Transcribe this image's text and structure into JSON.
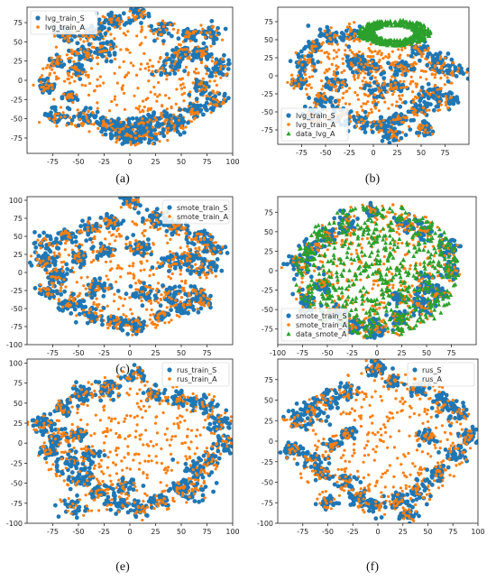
{
  "colors": {
    "S": "#1f77b4",
    "A": "#ff7f0e",
    "data": "#2ca02c"
  },
  "panel_captions": [
    "(a)",
    "(b)",
    "(c)",
    "(d)",
    "(e)",
    "(f)"
  ],
  "chart_data": [
    {
      "type": "scatter",
      "caption": "(a)",
      "legend_loc": "top-left",
      "xlim": [
        -100,
        100
      ],
      "ylim": [
        -95,
        95
      ],
      "xticks": [
        -75,
        -50,
        -25,
        0,
        25,
        50,
        75,
        100
      ],
      "yticks": [
        -75,
        -50,
        -25,
        0,
        25,
        50,
        75
      ],
      "grid": false,
      "series": [
        {
          "name": "lvg_train_S",
          "marker": "circle",
          "color": "#1f77b4"
        },
        {
          "name": "lvg_train_A",
          "marker": "x",
          "color": "#ff7f0e"
        }
      ],
      "clusters_S": [
        [
          -62,
          58
        ],
        [
          -38,
          62
        ],
        [
          -18,
          78
        ],
        [
          8,
          85
        ],
        [
          32,
          66
        ],
        [
          58,
          58
        ],
        [
          78,
          62
        ],
        [
          88,
          18
        ],
        [
          -72,
          22
        ],
        [
          -58,
          -22
        ],
        [
          -80,
          -8
        ],
        [
          -42,
          -48
        ],
        [
          -22,
          -58
        ],
        [
          -8,
          -62
        ],
        [
          12,
          -58
        ],
        [
          22,
          -72
        ],
        [
          45,
          -58
        ],
        [
          62,
          -40
        ],
        [
          82,
          -28
        ],
        [
          72,
          -10
        ],
        [
          70,
          35
        ],
        [
          48,
          35
        ],
        [
          -45,
          35
        ],
        [
          -25,
          40
        ],
        [
          -8,
          -72
        ],
        [
          5,
          -75
        ],
        [
          28,
          -50
        ],
        [
          -72,
          -45
        ],
        [
          -52,
          12
        ],
        [
          35,
          15
        ]
      ],
      "spread_A": [
        [
          -92,
          92
        ],
        [
          -82,
          80
        ]
      ]
    },
    {
      "type": "scatter",
      "caption": "(b)",
      "legend_loc": "bottom-left",
      "xlim": [
        -100,
        100
      ],
      "ylim": [
        -95,
        95
      ],
      "xticks": [
        -75,
        -50,
        -25,
        0,
        25,
        50,
        75
      ],
      "yticks": [
        -75,
        -50,
        -25,
        0,
        25,
        50,
        75
      ],
      "grid": false,
      "series": [
        {
          "name": "lvg_train_S",
          "marker": "circle",
          "color": "#1f77b4"
        },
        {
          "name": "lvg_train_A",
          "marker": "x",
          "color": "#ff7f0e"
        },
        {
          "name": "data_lvg_A",
          "marker": "triangle",
          "color": "#2ca02c"
        }
      ],
      "clusters_S": [
        [
          -62,
          42
        ],
        [
          -45,
          55
        ],
        [
          -22,
          58
        ],
        [
          -72,
          18
        ],
        [
          -78,
          -10
        ],
        [
          -55,
          -35
        ],
        [
          -35,
          -55
        ],
        [
          -12,
          -65
        ],
        [
          10,
          -68
        ],
        [
          28,
          -60
        ],
        [
          48,
          -48
        ],
        [
          62,
          -25
        ],
        [
          75,
          -35
        ],
        [
          82,
          8
        ],
        [
          68,
          20
        ],
        [
          48,
          38
        ],
        [
          -40,
          -10
        ],
        [
          -20,
          20
        ],
        [
          5,
          -20
        ],
        [
          25,
          -15
        ],
        [
          30,
          10
        ],
        [
          -5,
          10
        ],
        [
          -62,
          -55
        ],
        [
          55,
          -75
        ],
        [
          18,
          -82
        ]
      ],
      "ring_data": {
        "center": [
          22,
          60
        ],
        "rx": 38,
        "ry": 18
      },
      "spread_A": [
        [
          -85,
          90
        ],
        [
          -85,
          55
        ]
      ]
    },
    {
      "type": "scatter",
      "caption": "(c)",
      "legend_loc": "top-right",
      "xlim": [
        -100,
        100
      ],
      "ylim": [
        -100,
        105
      ],
      "xticks": [
        -75,
        -50,
        -25,
        0,
        25,
        50,
        75
      ],
      "yticks": [
        -100,
        -75,
        -50,
        -25,
        0,
        25,
        50,
        75,
        100
      ],
      "grid": false,
      "series": [
        {
          "name": "smote_train_S",
          "marker": "circle",
          "color": "#1f77b4"
        },
        {
          "name": "smote_train_A",
          "marker": "x",
          "color": "#ff7f0e"
        }
      ],
      "clusters_S": [
        [
          -80,
          42
        ],
        [
          -62,
          52
        ],
        [
          -40,
          60
        ],
        [
          -18,
          70
        ],
        [
          0,
          98
        ],
        [
          25,
          75
        ],
        [
          45,
          62
        ],
        [
          68,
          48
        ],
        [
          82,
          35
        ],
        [
          -82,
          18
        ],
        [
          -70,
          -5
        ],
        [
          -80,
          -25
        ],
        [
          -58,
          -42
        ],
        [
          -38,
          -58
        ],
        [
          -15,
          -68
        ],
        [
          5,
          -75
        ],
        [
          30,
          -60
        ],
        [
          52,
          -48
        ],
        [
          65,
          -30
        ],
        [
          72,
          5
        ],
        [
          58,
          20
        ],
        [
          40,
          15
        ],
        [
          -50,
          20
        ],
        [
          -25,
          30
        ],
        [
          10,
          35
        ],
        [
          -30,
          -20
        ],
        [
          15,
          -30
        ],
        [
          40,
          -30
        ],
        [
          72,
          -40
        ]
      ],
      "spread_A": [
        [
          -90,
          90
        ],
        [
          -95,
          85
        ]
      ]
    },
    {
      "type": "scatter",
      "caption": "(d)",
      "legend_loc": "bottom-left",
      "xlim": [
        -100,
        100
      ],
      "ylim": [
        -95,
        95
      ],
      "xticks": [
        -100,
        -75,
        -50,
        -25,
        0,
        25,
        50,
        75
      ],
      "yticks": [
        -75,
        -50,
        -25,
        0,
        25,
        50,
        75
      ],
      "grid": false,
      "series": [
        {
          "name": "smote_train_S",
          "marker": "circle",
          "color": "#1f77b4"
        },
        {
          "name": "smote_train_A",
          "marker": "x",
          "color": "#ff7f0e"
        },
        {
          "name": "data_smote_A",
          "marker": "triangle",
          "color": "#2ca02c"
        }
      ],
      "clusters_S": [
        [
          -82,
          10
        ],
        [
          -65,
          30
        ],
        [
          -55,
          -20
        ],
        [
          -70,
          -40
        ],
        [
          -40,
          -55
        ],
        [
          -22,
          -70
        ],
        [
          0,
          -75
        ],
        [
          22,
          -62
        ],
        [
          45,
          -45
        ],
        [
          62,
          -28
        ],
        [
          75,
          0
        ],
        [
          72,
          30
        ],
        [
          50,
          50
        ],
        [
          28,
          62
        ],
        [
          -5,
          75
        ],
        [
          -32,
          60
        ],
        [
          -50,
          45
        ],
        [
          25,
          -35
        ],
        [
          48,
          -20
        ]
      ],
      "spread_A": [
        [
          -90,
          85
        ],
        [
          -85,
          92
        ]
      ]
    },
    {
      "type": "scatter",
      "caption": "(e)",
      "legend_loc": "top-right",
      "xlim": [
        -100,
        100
      ],
      "ylim": [
        -100,
        105
      ],
      "xticks": [
        -75,
        -50,
        -25,
        0,
        25,
        50,
        75,
        100
      ],
      "yticks": [
        -100,
        -75,
        -50,
        -25,
        0,
        25,
        50,
        75,
        100
      ],
      "grid": false,
      "series": [
        {
          "name": "rus_train_S",
          "marker": "circle",
          "color": "#1f77b4"
        },
        {
          "name": "rus_train_A",
          "marker": "x",
          "color": "#ff7f0e"
        }
      ],
      "clusters_S": [
        [
          -88,
          25
        ],
        [
          -65,
          45
        ],
        [
          -45,
          62
        ],
        [
          -20,
          68
        ],
        [
          5,
          85
        ],
        [
          25,
          62
        ],
        [
          50,
          55
        ],
        [
          72,
          48
        ],
        [
          88,
          25
        ],
        [
          92,
          0
        ],
        [
          -78,
          -10
        ],
        [
          -62,
          -25
        ],
        [
          -48,
          -45
        ],
        [
          -30,
          -62
        ],
        [
          -10,
          -75
        ],
        [
          10,
          -82
        ],
        [
          30,
          -72
        ],
        [
          48,
          -55
        ],
        [
          65,
          -35
        ],
        [
          78,
          -20
        ],
        [
          -70,
          8
        ],
        [
          -50,
          10
        ],
        [
          -40,
          -15
        ],
        [
          62,
          -60
        ],
        [
          -55,
          -80
        ],
        [
          -5,
          -55
        ]
      ],
      "spread_A": [
        [
          -88,
          95
        ],
        [
          -90,
          90
        ]
      ]
    },
    {
      "type": "scatter",
      "caption": "(f)",
      "legend_loc": "top-right",
      "xlim": [
        -100,
        100
      ],
      "ylim": [
        -100,
        100
      ],
      "xticks": [
        -75,
        -50,
        -25,
        0,
        25,
        50,
        75,
        100
      ],
      "yticks": [
        -100,
        -75,
        -50,
        -25,
        0,
        25,
        50,
        75
      ],
      "grid": false,
      "series": [
        {
          "name": "rus_S",
          "marker": "circle",
          "color": "#1f77b4"
        },
        {
          "name": "rus_A",
          "marker": "x",
          "color": "#ff7f0e"
        }
      ],
      "clusters_S": [
        [
          -82,
          25
        ],
        [
          -65,
          35
        ],
        [
          -50,
          50
        ],
        [
          -30,
          60
        ],
        [
          0,
          90
        ],
        [
          15,
          72
        ],
        [
          40,
          65
        ],
        [
          65,
          48
        ],
        [
          80,
          35
        ],
        [
          88,
          5
        ],
        [
          -85,
          -10
        ],
        [
          -65,
          -20
        ],
        [
          -55,
          -40
        ],
        [
          -35,
          -50
        ],
        [
          -20,
          -70
        ],
        [
          0,
          -78
        ],
        [
          20,
          -72
        ],
        [
          40,
          -60
        ],
        [
          60,
          -38
        ],
        [
          78,
          -15
        ],
        [
          -45,
          -5
        ],
        [
          -30,
          10
        ],
        [
          50,
          5
        ],
        [
          -50,
          -75
        ],
        [
          30,
          -90
        ]
      ],
      "spread_A": [
        [
          -88,
          95
        ],
        [
          -95,
          90
        ]
      ]
    }
  ]
}
